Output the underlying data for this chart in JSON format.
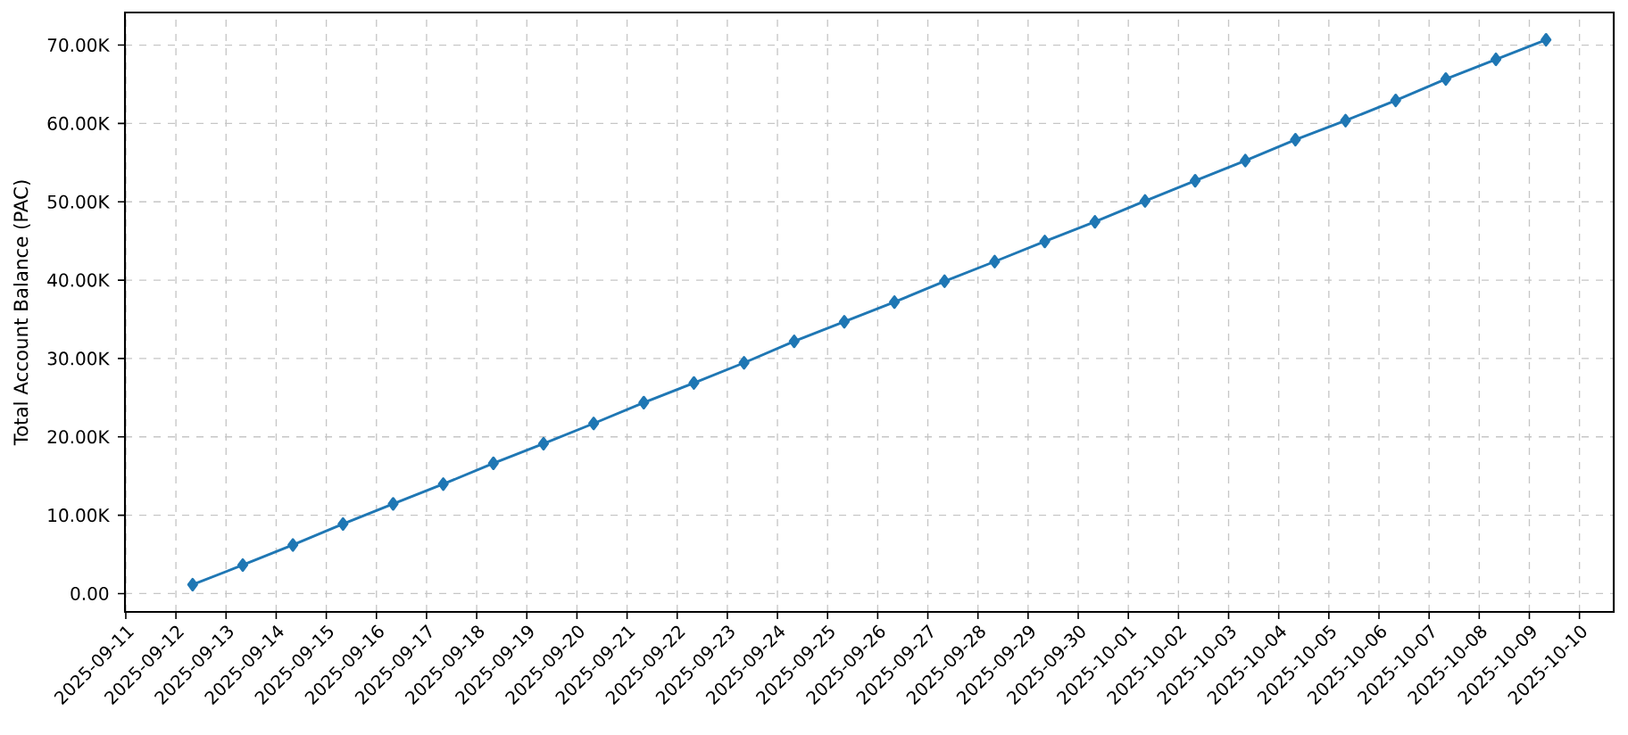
{
  "chart_data": {
    "type": "line",
    "ylabel": "Total Account Balance (PAC)",
    "x": [
      "2025-09-12T08:00",
      "2025-09-13T08:00",
      "2025-09-14T08:00",
      "2025-09-15T08:00",
      "2025-09-16T08:00",
      "2025-09-17T08:00",
      "2025-09-18T08:00",
      "2025-09-19T08:00",
      "2025-09-20T08:00",
      "2025-09-21T08:00",
      "2025-09-22T08:00",
      "2025-09-23T08:00",
      "2025-09-24T08:00",
      "2025-09-25T08:00",
      "2025-09-26T08:00",
      "2025-09-27T08:00",
      "2025-09-28T08:00",
      "2025-09-29T08:00",
      "2025-09-30T08:00",
      "2025-10-01T08:00",
      "2025-10-02T08:00",
      "2025-10-03T08:00",
      "2025-10-04T08:00",
      "2025-10-05T08:00",
      "2025-10-06T08:00",
      "2025-10-07T08:00",
      "2025-10-08T08:00",
      "2025-10-09T08:00"
    ],
    "series": [
      {
        "color": "#1f77b4",
        "values": [
          1140,
          3640,
          6200,
          8880,
          11450,
          13970,
          16630,
          19130,
          21710,
          24370,
          26880,
          29450,
          32190,
          34690,
          37200,
          39860,
          42370,
          44940,
          47450,
          50110,
          52690,
          55260,
          57930,
          60360,
          62940,
          65670,
          68180,
          70680
        ]
      }
    ],
    "xlim": [
      "2025-09-10T23:36",
      "2025-10-10T16:24"
    ],
    "xticks": [
      "2025-09-11",
      "2025-09-12",
      "2025-09-13",
      "2025-09-14",
      "2025-09-15",
      "2025-09-16",
      "2025-09-17",
      "2025-09-18",
      "2025-09-19",
      "2025-09-20",
      "2025-09-21",
      "2025-09-22",
      "2025-09-23",
      "2025-09-24",
      "2025-09-25",
      "2025-09-26",
      "2025-09-27",
      "2025-09-28",
      "2025-09-29",
      "2025-09-30",
      "2025-10-01",
      "2025-10-02",
      "2025-10-03",
      "2025-10-04",
      "2025-10-05",
      "2025-10-06",
      "2025-10-07",
      "2025-10-08",
      "2025-10-09",
      "2025-10-10"
    ],
    "ylim": [
      -2340,
      74160
    ],
    "yticks": [
      {
        "value": 0,
        "label": "0.00"
      },
      {
        "value": 10000,
        "label": "10.00K"
      },
      {
        "value": 20000,
        "label": "20.00K"
      },
      {
        "value": 30000,
        "label": "30.00K"
      },
      {
        "value": 40000,
        "label": "40.00K"
      },
      {
        "value": 50000,
        "label": "50.00K"
      },
      {
        "value": 60000,
        "label": "60.00K"
      },
      {
        "value": 70000,
        "label": "70.00K"
      }
    ],
    "grid": true,
    "marker": "diamond",
    "line_style": "solid"
  }
}
